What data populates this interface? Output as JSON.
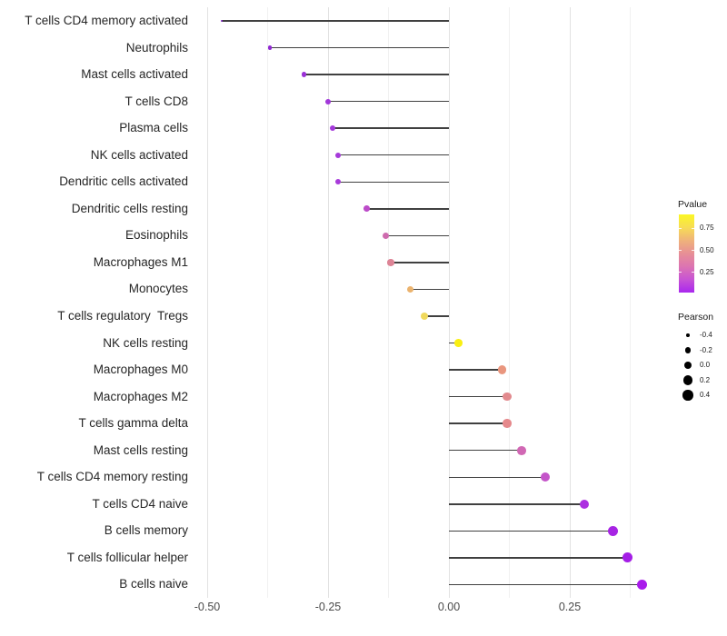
{
  "chart_data": {
    "type": "lollipop",
    "orientation": "horizontal",
    "title": "",
    "xlabel": "",
    "ylabel": "",
    "grid": true,
    "x_range": [
      -0.5135,
      0.4475
    ],
    "x_ticks": [
      {
        "label": "-0.50",
        "value": -0.5
      },
      {
        "label": "-0.25",
        "value": -0.25
      },
      {
        "label": "0.00",
        "value": 0.0
      },
      {
        "label": "0.25",
        "value": 0.25
      }
    ],
    "x_minor_grid": [
      -0.375,
      -0.125,
      0.125,
      0.375
    ],
    "points": [
      {
        "label": "T cells CD4 memory activated",
        "pearson": -0.47,
        "color": "#8428c9"
      },
      {
        "label": "Neutrophils",
        "pearson": -0.37,
        "color": "#9129d3"
      },
      {
        "label": "Mast cells activated",
        "pearson": -0.3,
        "color": "#9a31d6"
      },
      {
        "label": "T cells CD8",
        "pearson": -0.25,
        "color": "#a137d9"
      },
      {
        "label": "Plasma cells",
        "pearson": -0.24,
        "color": "#a439da"
      },
      {
        "label": "NK cells activated",
        "pearson": -0.23,
        "color": "#a63ada"
      },
      {
        "label": "Dendritic cells activated",
        "pearson": -0.23,
        "color": "#a83bda"
      },
      {
        "label": "Dendritic cells resting",
        "pearson": -0.17,
        "color": "#bc4bc9"
      },
      {
        "label": "Eosinophils",
        "pearson": -0.13,
        "color": "#ce6bae"
      },
      {
        "label": "Macrophages M1",
        "pearson": -0.12,
        "color": "#dd8496"
      },
      {
        "label": "Monocytes",
        "pearson": -0.08,
        "color": "#ebb36e"
      },
      {
        "label": "T cells regulatory  Tregs",
        "pearson": -0.05,
        "color": "#f0d95d"
      },
      {
        "label": "NK cells resting",
        "pearson": 0.02,
        "color": "#f9ef12"
      },
      {
        "label": "Macrophages M0",
        "pearson": 0.11,
        "color": "#e9967e"
      },
      {
        "label": "Macrophages M2",
        "pearson": 0.12,
        "color": "#e28a8e"
      },
      {
        "label": "T cells gamma delta",
        "pearson": 0.12,
        "color": "#e5888b"
      },
      {
        "label": "Mast cells resting",
        "pearson": 0.15,
        "color": "#d168b4"
      },
      {
        "label": "T cells CD4 memory resting",
        "pearson": 0.2,
        "color": "#c455c9"
      },
      {
        "label": "T cells CD4 naive",
        "pearson": 0.28,
        "color": "#ac2fe0"
      },
      {
        "label": "B cells memory",
        "pearson": 0.34,
        "color": "#a724e4"
      },
      {
        "label": "T cells follicular helper",
        "pearson": 0.37,
        "color": "#a41ee6"
      },
      {
        "label": "B cells naive",
        "pearson": 0.4,
        "color": "#a91beb"
      }
    ],
    "legend": {
      "pvalue": {
        "title": "Pvalue",
        "ticks": [
          {
            "label": "0.75",
            "value": 0.75
          },
          {
            "label": "0.50",
            "value": 0.5
          },
          {
            "label": "0.25",
            "value": 0.25
          }
        ],
        "bar_domain": [
          0.02,
          0.91
        ],
        "gradient_top_to_bottom": [
          "#fbf724",
          "#f7dc55",
          "#efb27b",
          "#e78f96",
          "#dc74b2",
          "#c753d4",
          "#a927ee"
        ]
      },
      "pearson": {
        "title": "Pearson",
        "entries": [
          {
            "label": "-0.4",
            "value": -0.4
          },
          {
            "label": "-0.2",
            "value": -0.2
          },
          {
            "label": "0.0",
            "value": 0.0
          },
          {
            "label": "0.2",
            "value": 0.2
          },
          {
            "label": "0.4",
            "value": 0.4
          }
        ]
      }
    }
  }
}
